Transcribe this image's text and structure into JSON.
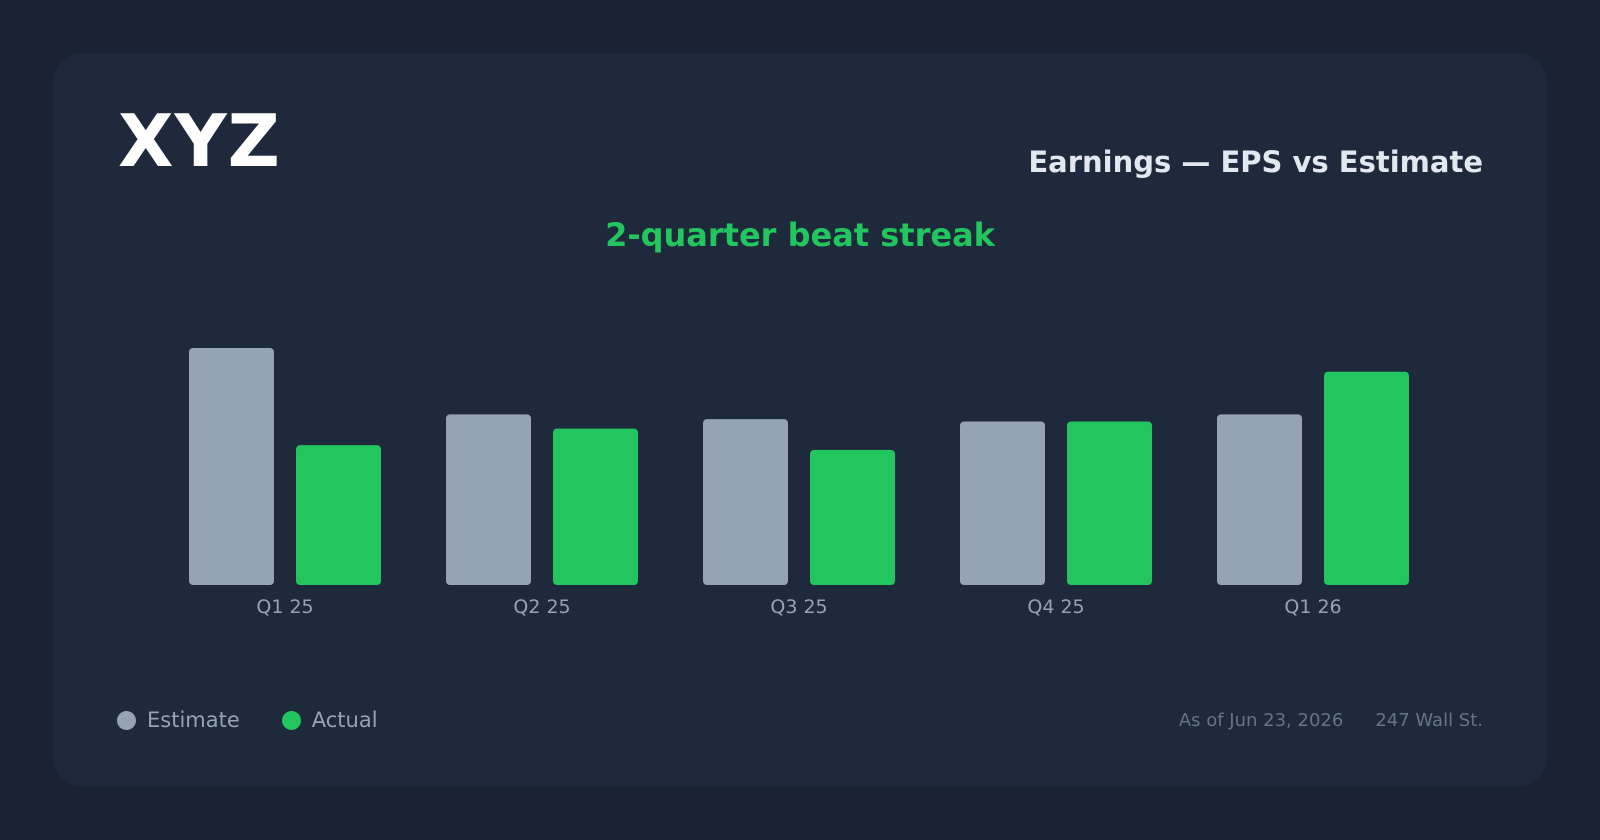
{
  "header": {
    "ticker": "XYZ",
    "title": "Earnings — EPS vs Estimate",
    "streak": "2-quarter beat streak"
  },
  "legend": {
    "estimate_label": "Estimate",
    "actual_label": "Actual"
  },
  "footer": {
    "as_of": "As of Jun 23, 2026",
    "source": "247 Wall St."
  },
  "colors": {
    "estimate": "#94a3b8",
    "actual": "#22c55e",
    "background": "#1a2332",
    "card": "#1e293b"
  },
  "chart_data": {
    "type": "bar",
    "title": "Earnings — EPS vs Estimate",
    "categories": [
      "Q1 25",
      "Q2 25",
      "Q3 25",
      "Q4 25",
      "Q1 26"
    ],
    "series": [
      {
        "name": "Estimate",
        "values": [
          1.0,
          0.72,
          0.7,
          0.69,
          0.72
        ]
      },
      {
        "name": "Actual",
        "values": [
          0.59,
          0.66,
          0.57,
          0.69,
          0.9
        ]
      }
    ],
    "ylim": [
      0,
      1
    ],
    "grid": false,
    "legend_position": "bottom-left"
  }
}
